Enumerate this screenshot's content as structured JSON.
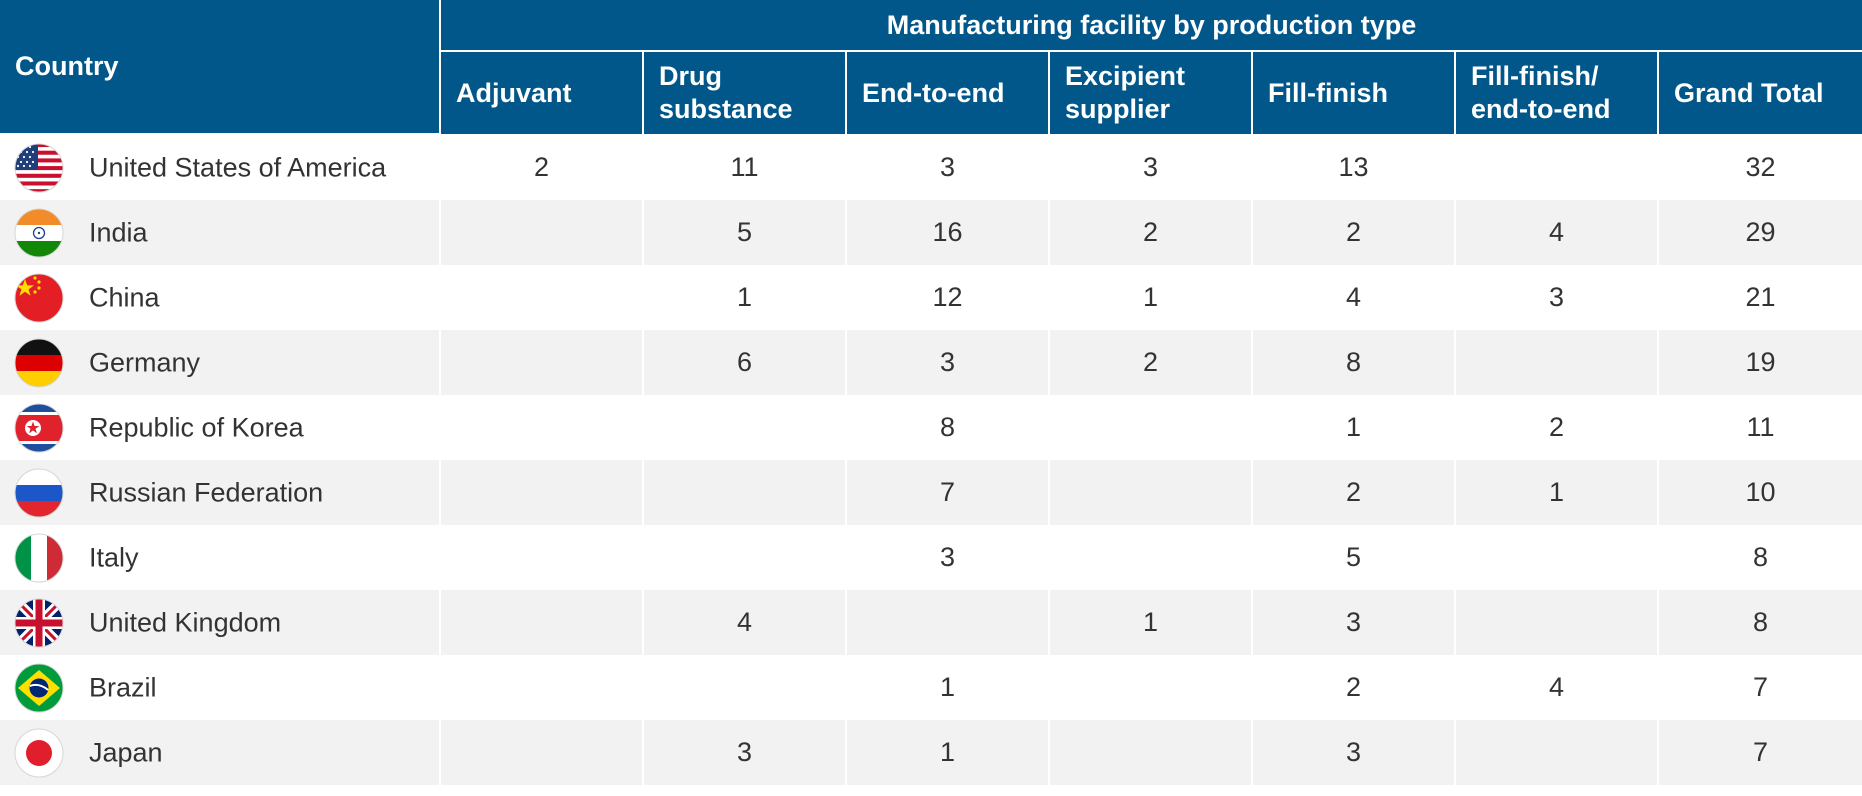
{
  "table": {
    "header": {
      "country": "Country",
      "group": "Manufacturing facility by production type",
      "columns": [
        {
          "l1": "Adjuvant",
          "l2": ""
        },
        {
          "l1": "Drug",
          "l2": "substance"
        },
        {
          "l1": "End-to-end",
          "l2": ""
        },
        {
          "l1": "Excipient",
          "l2": "supplier"
        },
        {
          "l1": "Fill-finish",
          "l2": ""
        },
        {
          "l1": "Fill-finish/",
          "l2": "end-to-end"
        },
        {
          "l1": "Grand Total",
          "l2": ""
        }
      ]
    },
    "rows": [
      {
        "country": "United States of America",
        "flag": "usa-flag-icon",
        "values": [
          "2",
          "11",
          "3",
          "3",
          "13",
          "",
          "32"
        ]
      },
      {
        "country": "India",
        "flag": "india-flag-icon",
        "values": [
          "",
          "5",
          "16",
          "2",
          "2",
          "4",
          "29"
        ]
      },
      {
        "country": "China",
        "flag": "china-flag-icon",
        "values": [
          "",
          "1",
          "12",
          "1",
          "4",
          "3",
          "21"
        ]
      },
      {
        "country": "Germany",
        "flag": "germany-flag-icon",
        "values": [
          "",
          "6",
          "3",
          "2",
          "8",
          "",
          "19"
        ]
      },
      {
        "country": "Republic of Korea",
        "flag": "korea-flag-icon",
        "values": [
          "",
          "",
          "8",
          "",
          "1",
          "2",
          "11"
        ]
      },
      {
        "country": "Russian Federation",
        "flag": "russia-flag-icon",
        "values": [
          "",
          "",
          "7",
          "",
          "2",
          "1",
          "10"
        ]
      },
      {
        "country": "Italy",
        "flag": "italy-flag-icon",
        "values": [
          "",
          "",
          "3",
          "",
          "5",
          "",
          "8"
        ]
      },
      {
        "country": "United Kingdom",
        "flag": "uk-flag-icon",
        "values": [
          "",
          "4",
          "",
          "1",
          "3",
          "",
          "8"
        ]
      },
      {
        "country": "Brazil",
        "flag": "brazil-flag-icon",
        "values": [
          "",
          "",
          "1",
          "",
          "2",
          "4",
          "7"
        ]
      },
      {
        "country": "Japan",
        "flag": "japan-flag-icon",
        "values": [
          "",
          "3",
          "1",
          "",
          "3",
          "",
          "7"
        ]
      }
    ]
  },
  "chart_data": {
    "type": "table",
    "title": "Manufacturing facility by production type",
    "row_header": "Country",
    "columns": [
      "Adjuvant",
      "Drug substance",
      "End-to-end",
      "Excipient supplier",
      "Fill-finish",
      "Fill-finish/ end-to-end",
      "Grand Total"
    ],
    "rows": [
      {
        "country": "United States of America",
        "values": [
          2,
          11,
          3,
          3,
          13,
          null,
          32
        ]
      },
      {
        "country": "India",
        "values": [
          null,
          5,
          16,
          2,
          2,
          4,
          29
        ]
      },
      {
        "country": "China",
        "values": [
          null,
          1,
          12,
          1,
          4,
          3,
          21
        ]
      },
      {
        "country": "Germany",
        "values": [
          null,
          6,
          3,
          2,
          8,
          null,
          19
        ]
      },
      {
        "country": "Republic of Korea",
        "values": [
          null,
          null,
          8,
          null,
          1,
          2,
          11
        ]
      },
      {
        "country": "Russian Federation",
        "values": [
          null,
          null,
          7,
          null,
          2,
          1,
          10
        ]
      },
      {
        "country": "Italy",
        "values": [
          null,
          null,
          3,
          null,
          5,
          null,
          8
        ]
      },
      {
        "country": "United Kingdom",
        "values": [
          null,
          4,
          null,
          1,
          3,
          null,
          8
        ]
      },
      {
        "country": "Brazil",
        "values": [
          null,
          null,
          1,
          null,
          2,
          4,
          7
        ]
      },
      {
        "country": "Japan",
        "values": [
          null,
          3,
          1,
          null,
          3,
          null,
          7
        ]
      }
    ]
  },
  "colors": {
    "header_bg": "#02578a",
    "header_text": "#ffffff",
    "row_alt_bg": "#f2f2f2",
    "body_text": "#333333"
  }
}
